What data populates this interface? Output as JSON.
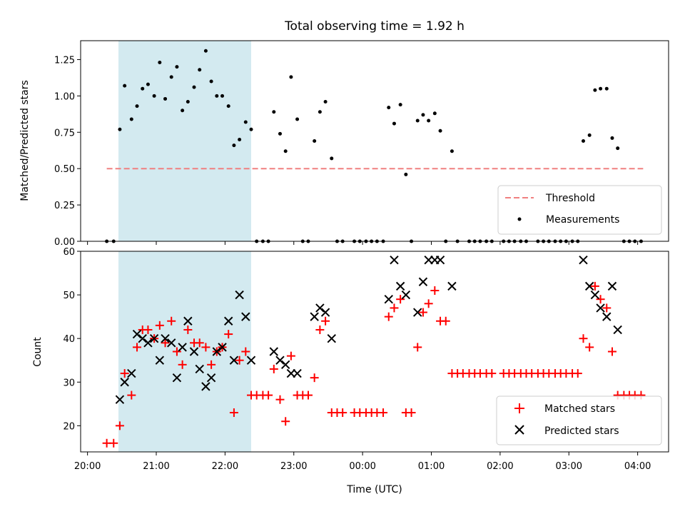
{
  "chart_data": [
    {
      "type": "scatter",
      "title": "Total observing time = 1.92 h",
      "ylabel": "Matched/Predicted stars",
      "xlabel": "",
      "x_unit": "hours after 20:00 UTC",
      "xlim": [
        -0.1,
        8.45
      ],
      "ylim": [
        0,
        1.38
      ],
      "yticks": [
        "0.00",
        "0.25",
        "0.50",
        "0.75",
        "1.00",
        "1.25"
      ],
      "ytick_values": [
        0,
        0.25,
        0.5,
        0.75,
        1.0,
        1.25
      ],
      "shaded_x": [
        0.45,
        2.38
      ],
      "shade_color": "#d3eaf0",
      "threshold": {
        "label": "Threshold",
        "y": 0.5,
        "x": [
          0.28,
          8.08
        ],
        "color": "#f08080"
      },
      "series": [
        {
          "name": "Measurements",
          "color": "#000000",
          "points": [
            [
              0.28,
              0
            ],
            [
              0.38,
              0
            ],
            [
              0.47,
              0.77
            ],
            [
              0.54,
              1.07
            ],
            [
              0.64,
              0.84
            ],
            [
              0.72,
              0.93
            ],
            [
              0.8,
              1.05
            ],
            [
              0.88,
              1.08
            ],
            [
              0.97,
              1.0
            ],
            [
              1.05,
              1.23
            ],
            [
              1.13,
              0.98
            ],
            [
              1.22,
              1.13
            ],
            [
              1.3,
              1.2
            ],
            [
              1.38,
              0.9
            ],
            [
              1.46,
              0.96
            ],
            [
              1.55,
              1.06
            ],
            [
              1.63,
              1.18
            ],
            [
              1.72,
              1.31
            ],
            [
              1.8,
              1.1
            ],
            [
              1.88,
              1.0
            ],
            [
              1.96,
              1.0
            ],
            [
              2.05,
              0.93
            ],
            [
              2.13,
              0.66
            ],
            [
              2.21,
              0.7
            ],
            [
              2.3,
              0.82
            ],
            [
              2.38,
              0.77
            ],
            [
              2.46,
              0
            ],
            [
              2.55,
              0
            ],
            [
              2.63,
              0
            ],
            [
              2.71,
              0.89
            ],
            [
              2.8,
              0.74
            ],
            [
              2.88,
              0.62
            ],
            [
              2.96,
              1.13
            ],
            [
              3.05,
              0.84
            ],
            [
              3.13,
              0
            ],
            [
              3.21,
              0
            ],
            [
              3.3,
              0.69
            ],
            [
              3.38,
              0.89
            ],
            [
              3.46,
              0.96
            ],
            [
              3.55,
              0.57
            ],
            [
              3.63,
              0
            ],
            [
              3.71,
              0
            ],
            [
              3.88,
              0
            ],
            [
              3.96,
              0
            ],
            [
              4.05,
              0
            ],
            [
              4.13,
              0
            ],
            [
              4.21,
              0
            ],
            [
              4.3,
              0
            ],
            [
              4.38,
              0.92
            ],
            [
              4.46,
              0.81
            ],
            [
              4.55,
              0.94
            ],
            [
              4.63,
              0.46
            ],
            [
              4.71,
              0
            ],
            [
              4.8,
              0.83
            ],
            [
              4.88,
              0.87
            ],
            [
              4.96,
              0.83
            ],
            [
              5.05,
              0.88
            ],
            [
              5.13,
              0.76
            ],
            [
              5.21,
              0
            ],
            [
              5.3,
              0.62
            ],
            [
              5.38,
              0
            ],
            [
              5.55,
              0
            ],
            [
              5.63,
              0
            ],
            [
              5.71,
              0
            ],
            [
              5.8,
              0
            ],
            [
              5.88,
              0
            ],
            [
              6.05,
              0
            ],
            [
              6.13,
              0
            ],
            [
              6.21,
              0
            ],
            [
              6.3,
              0
            ],
            [
              6.38,
              0
            ],
            [
              6.55,
              0
            ],
            [
              6.63,
              0
            ],
            [
              6.71,
              0
            ],
            [
              6.8,
              0
            ],
            [
              6.88,
              0
            ],
            [
              6.96,
              0
            ],
            [
              7.05,
              0
            ],
            [
              7.13,
              0
            ],
            [
              7.21,
              0.69
            ],
            [
              7.3,
              0.73
            ],
            [
              7.38,
              1.04
            ],
            [
              7.46,
              1.05
            ],
            [
              7.55,
              1.05
            ],
            [
              7.63,
              0.71
            ],
            [
              7.71,
              0.64
            ],
            [
              7.8,
              0
            ],
            [
              7.88,
              0
            ],
            [
              7.96,
              0
            ],
            [
              8.05,
              0
            ]
          ]
        }
      ],
      "legend": [
        "Threshold",
        "Measurements"
      ],
      "legend_loc": "lower right"
    },
    {
      "type": "scatter",
      "xlabel": "Time (UTC)",
      "ylabel": "Count",
      "x_unit": "hours after 20:00 UTC",
      "xlim": [
        -0.1,
        8.45
      ],
      "ylim": [
        14,
        60
      ],
      "xticks": [
        "20:00",
        "21:00",
        "22:00",
        "23:00",
        "00:00",
        "01:00",
        "02:00",
        "03:00",
        "04:00"
      ],
      "xtick_values": [
        0,
        1,
        2,
        3,
        4,
        5,
        6,
        7,
        8
      ],
      "yticks": [
        "20",
        "30",
        "40",
        "50",
        "60"
      ],
      "ytick_values": [
        20,
        30,
        40,
        50,
        60
      ],
      "shaded_x": [
        0.45,
        2.38
      ],
      "shade_color": "#d3eaf0",
      "series": [
        {
          "name": "Matched stars",
          "marker": "plus",
          "color": "#ff0000",
          "points": [
            [
              0.28,
              16
            ],
            [
              0.38,
              16
            ],
            [
              0.47,
              20
            ],
            [
              0.54,
              32
            ],
            [
              0.64,
              27
            ],
            [
              0.72,
              38
            ],
            [
              0.8,
              42
            ],
            [
              0.88,
              42
            ],
            [
              0.97,
              40
            ],
            [
              1.05,
              43
            ],
            [
              1.13,
              39
            ],
            [
              1.22,
              44
            ],
            [
              1.3,
              37
            ],
            [
              1.38,
              34
            ],
            [
              1.46,
              42
            ],
            [
              1.55,
              39
            ],
            [
              1.63,
              39
            ],
            [
              1.72,
              38
            ],
            [
              1.8,
              34
            ],
            [
              1.88,
              37
            ],
            [
              1.96,
              38
            ],
            [
              2.05,
              41
            ],
            [
              2.13,
              23
            ],
            [
              2.21,
              35
            ],
            [
              2.3,
              37
            ],
            [
              2.38,
              27
            ],
            [
              2.46,
              27
            ],
            [
              2.55,
              27
            ],
            [
              2.63,
              27
            ],
            [
              2.71,
              33
            ],
            [
              2.8,
              26
            ],
            [
              2.88,
              21
            ],
            [
              2.96,
              36
            ],
            [
              3.05,
              27
            ],
            [
              3.13,
              27
            ],
            [
              3.21,
              27
            ],
            [
              3.3,
              31
            ],
            [
              3.38,
              42
            ],
            [
              3.46,
              44
            ],
            [
              3.55,
              23
            ],
            [
              3.63,
              23
            ],
            [
              3.71,
              23
            ],
            [
              3.88,
              23
            ],
            [
              3.96,
              23
            ],
            [
              4.05,
              23
            ],
            [
              4.13,
              23
            ],
            [
              4.21,
              23
            ],
            [
              4.3,
              23
            ],
            [
              4.38,
              45
            ],
            [
              4.46,
              47
            ],
            [
              4.55,
              49
            ],
            [
              4.63,
              23
            ],
            [
              4.71,
              23
            ],
            [
              4.8,
              38
            ],
            [
              4.88,
              46
            ],
            [
              4.96,
              48
            ],
            [
              5.05,
              51
            ],
            [
              5.13,
              44
            ],
            [
              5.21,
              44
            ],
            [
              5.3,
              32
            ],
            [
              5.38,
              32
            ],
            [
              5.46,
              32
            ],
            [
              5.55,
              32
            ],
            [
              5.63,
              32
            ],
            [
              5.71,
              32
            ],
            [
              5.8,
              32
            ],
            [
              5.88,
              32
            ],
            [
              6.05,
              32
            ],
            [
              6.13,
              32
            ],
            [
              6.21,
              32
            ],
            [
              6.3,
              32
            ],
            [
              6.38,
              32
            ],
            [
              6.46,
              32
            ],
            [
              6.55,
              32
            ],
            [
              6.63,
              32
            ],
            [
              6.71,
              32
            ],
            [
              6.8,
              32
            ],
            [
              6.88,
              32
            ],
            [
              6.96,
              32
            ],
            [
              7.05,
              32
            ],
            [
              7.13,
              32
            ],
            [
              7.21,
              40
            ],
            [
              7.3,
              38
            ],
            [
              7.38,
              52
            ],
            [
              7.46,
              49
            ],
            [
              7.55,
              47
            ],
            [
              7.63,
              37
            ],
            [
              7.71,
              27
            ],
            [
              7.8,
              27
            ],
            [
              7.88,
              27
            ],
            [
              7.96,
              27
            ],
            [
              8.05,
              27
            ]
          ]
        },
        {
          "name": "Predicted stars",
          "marker": "x",
          "color": "#000000",
          "points": [
            [
              0.47,
              26
            ],
            [
              0.54,
              30
            ],
            [
              0.64,
              32
            ],
            [
              0.72,
              41
            ],
            [
              0.8,
              40
            ],
            [
              0.88,
              39
            ],
            [
              0.97,
              40
            ],
            [
              1.05,
              35
            ],
            [
              1.13,
              40
            ],
            [
              1.22,
              39
            ],
            [
              1.3,
              31
            ],
            [
              1.38,
              38
            ],
            [
              1.46,
              44
            ],
            [
              1.55,
              37
            ],
            [
              1.63,
              33
            ],
            [
              1.72,
              29
            ],
            [
              1.8,
              31
            ],
            [
              1.88,
              37
            ],
            [
              1.96,
              38
            ],
            [
              2.05,
              44
            ],
            [
              2.13,
              35
            ],
            [
              2.21,
              50
            ],
            [
              2.3,
              45
            ],
            [
              2.38,
              35
            ],
            [
              2.71,
              37
            ],
            [
              2.8,
              35
            ],
            [
              2.88,
              34
            ],
            [
              2.96,
              32
            ],
            [
              3.05,
              32
            ],
            [
              3.3,
              45
            ],
            [
              3.38,
              47
            ],
            [
              3.46,
              46
            ],
            [
              3.55,
              40
            ],
            [
              4.38,
              49
            ],
            [
              4.46,
              58
            ],
            [
              4.55,
              52
            ],
            [
              4.63,
              50
            ],
            [
              4.8,
              46
            ],
            [
              4.88,
              53
            ],
            [
              4.96,
              58
            ],
            [
              5.05,
              58
            ],
            [
              5.13,
              58
            ],
            [
              5.3,
              52
            ],
            [
              7.21,
              58
            ],
            [
              7.3,
              52
            ],
            [
              7.38,
              50
            ],
            [
              7.46,
              47
            ],
            [
              7.55,
              45
            ],
            [
              7.63,
              52
            ],
            [
              7.71,
              42
            ]
          ]
        }
      ],
      "legend": [
        "Matched stars",
        "Predicted stars"
      ],
      "legend_loc": "lower right"
    }
  ]
}
